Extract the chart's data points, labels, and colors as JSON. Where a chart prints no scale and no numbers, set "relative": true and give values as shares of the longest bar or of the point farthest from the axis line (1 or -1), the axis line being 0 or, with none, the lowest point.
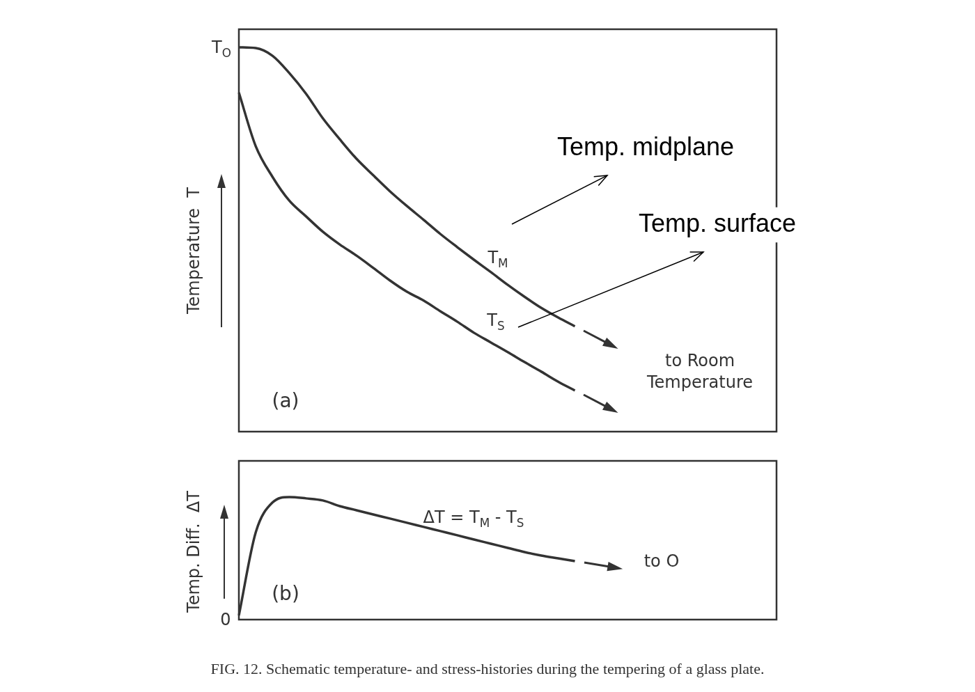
{
  "chart_data": [
    {
      "type": "line",
      "relative": true,
      "ylabel": "Temperature  T",
      "categories": [
        null,
        null,
        null,
        null,
        null,
        null,
        null,
        null,
        null,
        null,
        null,
        null,
        null,
        null,
        null,
        null,
        null,
        null,
        null,
        null,
        null,
        null,
        null,
        null,
        null,
        null,
        null,
        null,
        null,
        null,
        null,
        null,
        null
      ],
      "series": [
        {
          "name": "T$_{M}$",
          "color": "#333333",
          "values": [
            1.0,
            0.998,
            0.978,
            0.933,
            0.879,
            0.815,
            0.761,
            0.71,
            0.667,
            0.625,
            0.587,
            0.551,
            0.514,
            0.48,
            0.447,
            0.415,
            0.382,
            0.351,
            0.322,
            0.297,
            0.274,
            null,
            null,
            null,
            null,
            null,
            null,
            null,
            null,
            null,
            null,
            null,
            null
          ]
        },
        {
          "name": "T$_{S}$",
          "color": "#333333",
          "values": [
            0.882,
            0.743,
            0.663,
            0.601,
            0.56,
            0.52,
            0.487,
            0.458,
            0.426,
            0.393,
            0.364,
            0.341,
            0.313,
            0.286,
            0.257,
            0.232,
            0.207,
            0.181,
            0.156,
            0.13,
            0.107,
            null,
            null,
            null,
            null,
            null,
            null,
            null,
            null,
            null,
            null,
            null,
            null
          ]
        }
      ],
      "annotations": [
        "T$_{O}$",
        "(a)",
        "to Room Temperature",
        "Temp. midplane",
        "Temp. surface"
      ]
    },
    {
      "type": "line",
      "relative": true,
      "ylabel": "Temp. Diff.  ΔT",
      "categories": [
        null,
        null,
        null,
        null,
        null,
        null,
        null,
        null,
        null,
        null,
        null,
        null,
        null,
        null,
        null,
        null,
        null,
        null,
        null,
        null,
        null,
        null,
        null,
        null,
        null,
        null,
        null,
        null,
        null,
        null,
        null,
        null,
        null
      ],
      "series": [
        {
          "name": "ΔT = T$_{M}$ - T$_{S}$",
          "color": "#333333",
          "values": [
            0.034,
            0.71,
            0.955,
            1.0,
            0.989,
            0.972,
            0.926,
            0.892,
            0.858,
            0.824,
            0.79,
            0.756,
            0.722,
            0.688,
            0.653,
            0.619,
            0.585,
            0.551,
            0.523,
            0.5,
            0.477,
            null,
            null,
            null,
            null,
            null,
            null,
            null,
            null,
            null,
            null,
            null,
            null
          ]
        }
      ],
      "annotations": [
        "0",
        "(b)",
        "to O",
        "FIG. 12. Schematic temperature- and stress-histories during the tempering of a glass plate."
      ]
    }
  ]
}
